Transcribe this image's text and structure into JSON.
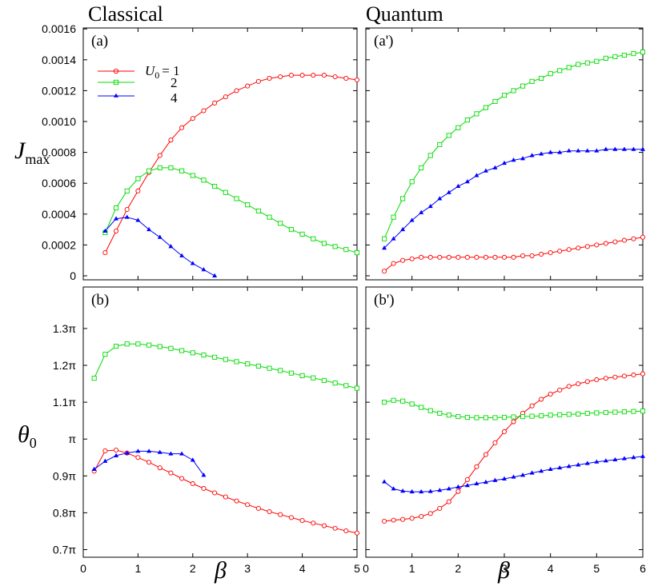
{
  "titles": {
    "left": "Classical",
    "right": "Quantum"
  },
  "axis_labels": {
    "x": "β",
    "y_top_main": "J",
    "y_top_sub": "max",
    "y_bottom_main": "θ",
    "y_bottom_sub": "0"
  },
  "legend": {
    "symbol": "U",
    "sub": "0",
    "entries": [
      "= 1",
      "2",
      "4"
    ]
  },
  "colors": {
    "U0_1": "#ff0000",
    "U0_2": "#00dd00",
    "U0_4": "#0000ff"
  },
  "markers": {
    "U0_1": "circle",
    "U0_2": "square",
    "U0_4": "triangle"
  },
  "chart_data": [
    {
      "type": "line",
      "panel_label": "(a)",
      "xlim": [
        0,
        5
      ],
      "ylim": [
        0,
        0.0016
      ],
      "xticks": [
        0,
        1,
        2,
        3,
        4,
        5
      ],
      "yticks": [
        0,
        0.0002,
        0.0004,
        0.0006,
        0.0008,
        0.001,
        0.0012,
        0.0014,
        0.0016
      ],
      "ytick_labels": [
        "0",
        "0.0002",
        "0.0004",
        "0.0006",
        "0.0008",
        "0.0010",
        "0.0012",
        "0.0014",
        "0.0016"
      ],
      "series": [
        {
          "legend": "U0 = 1",
          "color": "#ff0000",
          "marker": "circle",
          "x": [
            0.4,
            0.6,
            0.8,
            1.0,
            1.2,
            1.4,
            1.6,
            1.8,
            2.0,
            2.2,
            2.4,
            2.6,
            2.8,
            3.0,
            3.2,
            3.4,
            3.6,
            3.8,
            4.0,
            4.2,
            4.4,
            4.6,
            4.8,
            5.0
          ],
          "y": [
            0.00015,
            0.00029,
            0.00043,
            0.00055,
            0.00067,
            0.00078,
            0.00088,
            0.00096,
            0.00102,
            0.00107,
            0.00112,
            0.00116,
            0.0012,
            0.00123,
            0.00126,
            0.00128,
            0.00129,
            0.0013,
            0.0013,
            0.0013,
            0.0013,
            0.00129,
            0.00128,
            0.00127
          ]
        },
        {
          "legend": "2",
          "color": "#00dd00",
          "marker": "square",
          "x": [
            0.4,
            0.6,
            0.8,
            1.0,
            1.2,
            1.4,
            1.6,
            1.8,
            2.0,
            2.2,
            2.4,
            2.6,
            2.8,
            3.0,
            3.2,
            3.4,
            3.6,
            3.8,
            4.0,
            4.2,
            4.4,
            4.6,
            4.8,
            5.0
          ],
          "y": [
            0.00028,
            0.00044,
            0.00055,
            0.00063,
            0.00068,
            0.0007,
            0.0007,
            0.00068,
            0.00065,
            0.00062,
            0.00058,
            0.00054,
            0.0005,
            0.00046,
            0.00042,
            0.00038,
            0.00034,
            0.0003,
            0.00027,
            0.00024,
            0.00021,
            0.00019,
            0.00017,
            0.00015
          ]
        },
        {
          "legend": "4",
          "color": "#0000ff",
          "marker": "triangle",
          "x": [
            0.4,
            0.6,
            0.8,
            1.0,
            1.2,
            1.4,
            1.6,
            1.8,
            2.0,
            2.2,
            2.4
          ],
          "y": [
            0.00029,
            0.00037,
            0.00038,
            0.00036,
            0.0003,
            0.00025,
            0.00019,
            0.00013,
            8e-05,
            4e-05,
            0.0
          ]
        }
      ]
    },
    {
      "type": "line",
      "panel_label": "(a')",
      "xlim": [
        0,
        6
      ],
      "ylim": [
        0,
        0.0016
      ],
      "xticks": [
        0,
        1,
        2,
        3,
        4,
        5,
        6
      ],
      "yticks": [],
      "ytick_labels": [],
      "series": [
        {
          "legend": "U0 = 1",
          "color": "#ff0000",
          "marker": "circle",
          "x": [
            0.4,
            0.6,
            0.8,
            1.0,
            1.2,
            1.4,
            1.6,
            1.8,
            2.0,
            2.2,
            2.4,
            2.6,
            2.8,
            3.0,
            3.2,
            3.4,
            3.6,
            3.8,
            4.0,
            4.2,
            4.4,
            4.6,
            4.8,
            5.0,
            5.2,
            5.4,
            5.6,
            5.8,
            6.0
          ],
          "y": [
            3e-05,
            8e-05,
            0.0001,
            0.00011,
            0.00012,
            0.00012,
            0.00012,
            0.00012,
            0.00012,
            0.00012,
            0.00012,
            0.00012,
            0.00012,
            0.00012,
            0.00012,
            0.00013,
            0.00013,
            0.00014,
            0.00015,
            0.00016,
            0.00017,
            0.00018,
            0.00019,
            0.0002,
            0.00021,
            0.00022,
            0.00023,
            0.00024,
            0.00025
          ]
        },
        {
          "legend": "2",
          "color": "#00dd00",
          "marker": "square",
          "x": [
            0.4,
            0.6,
            0.8,
            1.0,
            1.2,
            1.4,
            1.6,
            1.8,
            2.0,
            2.2,
            2.4,
            2.6,
            2.8,
            3.0,
            3.2,
            3.4,
            3.6,
            3.8,
            4.0,
            4.2,
            4.4,
            4.6,
            4.8,
            5.0,
            5.2,
            5.4,
            5.6,
            5.8,
            6.0
          ],
          "y": [
            0.00024,
            0.00038,
            0.0005,
            0.00061,
            0.0007,
            0.00078,
            0.00085,
            0.00091,
            0.00096,
            0.00101,
            0.00105,
            0.00109,
            0.00113,
            0.00117,
            0.0012,
            0.00123,
            0.00126,
            0.00128,
            0.00131,
            0.00133,
            0.00135,
            0.00137,
            0.00138,
            0.00139,
            0.00141,
            0.00142,
            0.00143,
            0.00144,
            0.00145
          ]
        },
        {
          "legend": "4",
          "color": "#0000ff",
          "marker": "triangle",
          "x": [
            0.4,
            0.6,
            0.8,
            1.0,
            1.2,
            1.4,
            1.6,
            1.8,
            2.0,
            2.2,
            2.4,
            2.6,
            2.8,
            3.0,
            3.2,
            3.4,
            3.6,
            3.8,
            4.0,
            4.2,
            4.4,
            4.6,
            4.8,
            5.0,
            5.2,
            5.4,
            5.6,
            5.8,
            6.0
          ],
          "y": [
            0.00018,
            0.00024,
            0.0003,
            0.00036,
            0.00041,
            0.00045,
            0.0005,
            0.00054,
            0.00058,
            0.00061,
            0.00065,
            0.00068,
            0.0007,
            0.00073,
            0.00075,
            0.00076,
            0.00078,
            0.00079,
            0.0008,
            0.0008,
            0.00081,
            0.00081,
            0.00081,
            0.00081,
            0.00082,
            0.00082,
            0.00082,
            0.00082,
            0.00082
          ]
        }
      ]
    },
    {
      "type": "line",
      "panel_label": "(b)",
      "xlim": [
        0,
        5
      ],
      "ylim": [
        0.7,
        1.33
      ],
      "xticks": [
        0,
        1,
        2,
        3,
        4,
        5
      ],
      "yticks": [
        0.7,
        0.8,
        0.9,
        1.0,
        1.1,
        1.2,
        1.3
      ],
      "ytick_labels": [
        "0.7π",
        "0.8π",
        "0.9π",
        "π",
        "1.1π",
        "1.2π",
        "1.3π"
      ],
      "series": [
        {
          "legend": "U0 = 1",
          "color": "#ff0000",
          "marker": "circle",
          "x": [
            0.2,
            0.4,
            0.6,
            0.8,
            1.0,
            1.2,
            1.4,
            1.6,
            1.8,
            2.0,
            2.2,
            2.4,
            2.6,
            2.8,
            3.0,
            3.2,
            3.4,
            3.6,
            3.8,
            4.0,
            4.2,
            4.4,
            4.6,
            4.8,
            5.0
          ],
          "y": [
            0.913,
            0.968,
            0.97,
            0.962,
            0.95,
            0.937,
            0.922,
            0.908,
            0.893,
            0.879,
            0.866,
            0.854,
            0.843,
            0.832,
            0.822,
            0.812,
            0.803,
            0.795,
            0.787,
            0.779,
            0.772,
            0.765,
            0.758,
            0.751,
            0.745
          ]
        },
        {
          "legend": "2",
          "color": "#00dd00",
          "marker": "square",
          "x": [
            0.2,
            0.4,
            0.6,
            0.8,
            1.0,
            1.2,
            1.4,
            1.6,
            1.8,
            2.0,
            2.2,
            2.4,
            2.6,
            2.8,
            3.0,
            3.2,
            3.4,
            3.6,
            3.8,
            4.0,
            4.2,
            4.4,
            4.6,
            4.8,
            5.0
          ],
          "y": [
            1.165,
            1.23,
            1.252,
            1.258,
            1.258,
            1.255,
            1.251,
            1.246,
            1.24,
            1.234,
            1.228,
            1.222,
            1.216,
            1.21,
            1.204,
            1.198,
            1.192,
            1.186,
            1.179,
            1.172,
            1.166,
            1.159,
            1.152,
            1.145,
            1.138
          ]
        },
        {
          "legend": "4",
          "color": "#0000ff",
          "marker": "triangle",
          "x": [
            0.2,
            0.4,
            0.6,
            0.8,
            1.0,
            1.2,
            1.4,
            1.6,
            1.8,
            2.0,
            2.2
          ],
          "y": [
            0.918,
            0.94,
            0.955,
            0.962,
            0.967,
            0.967,
            0.964,
            0.96,
            0.96,
            0.943,
            0.902
          ]
        }
      ]
    },
    {
      "type": "line",
      "panel_label": "(b')",
      "xlim": [
        0,
        6
      ],
      "ylim": [
        0.7,
        1.33
      ],
      "xticks": [
        0,
        1,
        2,
        3,
        4,
        5,
        6
      ],
      "yticks": [],
      "ytick_labels": [],
      "series": [
        {
          "legend": "U0 = 1",
          "color": "#ff0000",
          "marker": "circle",
          "x": [
            0.4,
            0.6,
            0.8,
            1.0,
            1.2,
            1.4,
            1.6,
            1.8,
            2.0,
            2.2,
            2.4,
            2.6,
            2.8,
            3.0,
            3.2,
            3.4,
            3.6,
            3.8,
            4.0,
            4.2,
            4.4,
            4.6,
            4.8,
            5.0,
            5.2,
            5.4,
            5.6,
            5.8,
            6.0
          ],
          "y": [
            0.777,
            0.78,
            0.782,
            0.785,
            0.79,
            0.798,
            0.812,
            0.83,
            0.858,
            0.89,
            0.925,
            0.958,
            0.99,
            1.02,
            1.047,
            1.07,
            1.09,
            1.108,
            1.122,
            1.133,
            1.143,
            1.15,
            1.156,
            1.161,
            1.165,
            1.168,
            1.171,
            1.174,
            1.177
          ]
        },
        {
          "legend": "2",
          "color": "#00dd00",
          "marker": "square",
          "x": [
            0.4,
            0.6,
            0.8,
            1.0,
            1.2,
            1.4,
            1.6,
            1.8,
            2.0,
            2.2,
            2.4,
            2.6,
            2.8,
            3.0,
            3.2,
            3.4,
            3.6,
            3.8,
            4.0,
            4.2,
            4.4,
            4.6,
            4.8,
            5.0,
            5.2,
            5.4,
            5.6,
            5.8,
            6.0
          ],
          "y": [
            1.1,
            1.105,
            1.103,
            1.095,
            1.086,
            1.077,
            1.07,
            1.065,
            1.061,
            1.059,
            1.058,
            1.058,
            1.058,
            1.059,
            1.06,
            1.061,
            1.062,
            1.063,
            1.065,
            1.066,
            1.067,
            1.068,
            1.07,
            1.071,
            1.072,
            1.073,
            1.074,
            1.075,
            1.076
          ]
        },
        {
          "legend": "4",
          "color": "#0000ff",
          "marker": "triangle",
          "x": [
            0.4,
            0.6,
            0.8,
            1.0,
            1.2,
            1.4,
            1.6,
            1.8,
            2.0,
            2.2,
            2.4,
            2.6,
            2.8,
            3.0,
            3.2,
            3.4,
            3.6,
            3.8,
            4.0,
            4.2,
            4.4,
            4.6,
            4.8,
            5.0,
            5.2,
            5.4,
            5.6,
            5.8,
            6.0
          ],
          "y": [
            0.884,
            0.865,
            0.859,
            0.857,
            0.857,
            0.858,
            0.861,
            0.865,
            0.87,
            0.874,
            0.879,
            0.883,
            0.888,
            0.892,
            0.897,
            0.902,
            0.908,
            0.913,
            0.918,
            0.922,
            0.926,
            0.93,
            0.934,
            0.938,
            0.941,
            0.944,
            0.947,
            0.95,
            0.953
          ]
        }
      ]
    }
  ]
}
